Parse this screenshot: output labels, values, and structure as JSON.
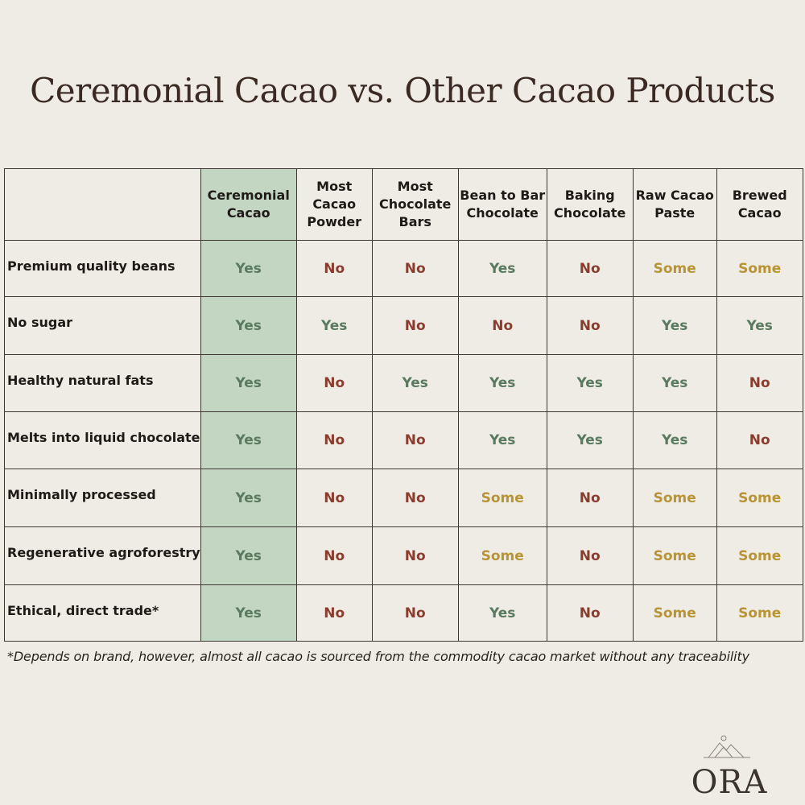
{
  "title": "Ceremonial Cacao vs. Other Cacao Products",
  "footnote": "*Depends on brand, however, almost all cacao is sourced from the commodity cacao market without any traceability",
  "logo": {
    "text": "ORA",
    "icon": "mountain-logo-icon"
  },
  "colors": {
    "background": "#efece5",
    "highlight": "#c3d6c2",
    "yes": "#5a7a5f",
    "no": "#8a3d2e",
    "some": "#b89434"
  },
  "chart_data": {
    "type": "table",
    "title": "Ceremonial Cacao vs. Other Cacao Products",
    "columns": [
      "Ceremonial Cacao",
      "Most Cacao Powder",
      "Most Chocolate Bars",
      "Bean to Bar Chocolate",
      "Baking Chocolate",
      "Raw Cacao Paste",
      "Brewed Cacao"
    ],
    "highlighted_column": "Ceremonial Cacao",
    "rows": [
      {
        "label": "Premium quality beans",
        "values": [
          "Yes",
          "No",
          "No",
          "Yes",
          "No",
          "Some",
          "Some"
        ]
      },
      {
        "label": "No sugar",
        "values": [
          "Yes",
          "Yes",
          "No",
          "No",
          "No",
          "Yes",
          "Yes"
        ]
      },
      {
        "label": "Healthy natural fats",
        "values": [
          "Yes",
          "No",
          "Yes",
          "Yes",
          "Yes",
          "Yes",
          "No"
        ]
      },
      {
        "label": "Melts into liquid chocolate",
        "values": [
          "Yes",
          "No",
          "No",
          "Yes",
          "Yes",
          "Yes",
          "No"
        ]
      },
      {
        "label": "Minimally processed",
        "values": [
          "Yes",
          "No",
          "No",
          "Some",
          "No",
          "Some",
          "Some"
        ]
      },
      {
        "label": "Regenerative agroforestry",
        "values": [
          "Yes",
          "No",
          "No",
          "Some",
          "No",
          "Some",
          "Some"
        ]
      },
      {
        "label": "Ethical, direct trade*",
        "values": [
          "Yes",
          "No",
          "No",
          "Yes",
          "No",
          "Some",
          "Some"
        ]
      }
    ]
  }
}
